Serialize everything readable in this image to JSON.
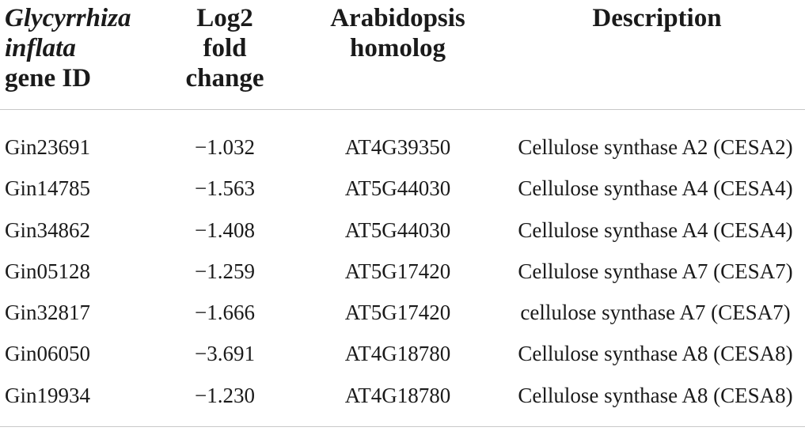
{
  "header": {
    "col1": [
      "Glycyrrhiza",
      "inflata",
      "gene ID"
    ],
    "col2": [
      "Log2",
      "fold",
      "change"
    ],
    "col3": [
      "Arabidopsis",
      "homolog"
    ],
    "col4": [
      "Description"
    ]
  },
  "rows": [
    {
      "gene_id": "Gin23691",
      "log2fc": "−1.032",
      "homolog": "AT4G39350",
      "description": "Cellulose synthase A2 (CESA2)"
    },
    {
      "gene_id": "Gin14785",
      "log2fc": "−1.563",
      "homolog": "AT5G44030",
      "description": "Cellulose synthase A4 (CESA4)"
    },
    {
      "gene_id": "Gin34862",
      "log2fc": "−1.408",
      "homolog": "AT5G44030",
      "description": "Cellulose synthase A4 (CESA4)"
    },
    {
      "gene_id": "Gin05128",
      "log2fc": "−1.259",
      "homolog": "AT5G17420",
      "description": "Cellulose synthase A7 (CESA7)"
    },
    {
      "gene_id": "Gin32817",
      "log2fc": "−1.666",
      "homolog": "AT5G17420",
      "description": "cellulose synthase A7 (CESA7)"
    },
    {
      "gene_id": "Gin06050",
      "log2fc": "−3.691",
      "homolog": "AT4G18780",
      "description": "Cellulose synthase A8 (CESA8)"
    },
    {
      "gene_id": "Gin19934",
      "log2fc": "−1.230",
      "homolog": "AT4G18780",
      "description": "Cellulose synthase A8 (CESA8)"
    }
  ]
}
